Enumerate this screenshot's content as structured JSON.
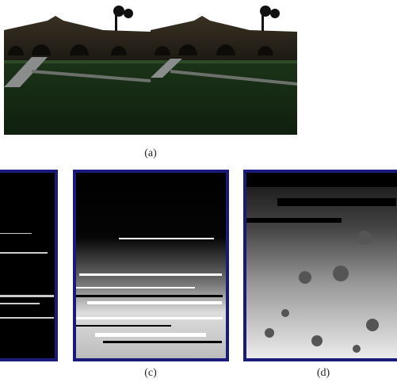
{
  "figure": {
    "captions": [
      "(a)",
      "(c)",
      "(d)"
    ]
  }
}
